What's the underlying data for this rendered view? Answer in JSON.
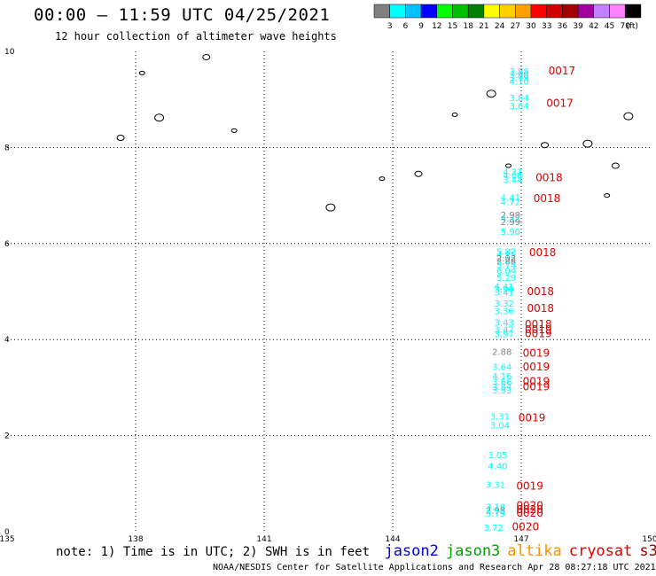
{
  "title": "00:00 – 11:59 UTC 04/25/2021",
  "subtitle": "12 hour collection of altimeter wave heights",
  "scale": {
    "unit": "(ft)",
    "bins": [
      {
        "color": "#808080",
        "label": "3"
      },
      {
        "color": "#00ffff",
        "label": "6"
      },
      {
        "color": "#00bfff",
        "label": "9"
      },
      {
        "color": "#0000ff",
        "label": "12"
      },
      {
        "color": "#00ff00",
        "label": "15"
      },
      {
        "color": "#00c000",
        "label": "18"
      },
      {
        "color": "#008000",
        "label": "21"
      },
      {
        "color": "#ffff00",
        "label": "24"
      },
      {
        "color": "#ffd000",
        "label": "27"
      },
      {
        "color": "#ffa000",
        "label": "30"
      },
      {
        "color": "#ff0000",
        "label": "33"
      },
      {
        "color": "#d00000",
        "label": "36"
      },
      {
        "color": "#a00000",
        "label": "39"
      },
      {
        "color": "#a000a0",
        "label": "42"
      },
      {
        "color": "#c080ff",
        "label": "45"
      },
      {
        "color": "#ff80ff",
        "label": "70"
      },
      {
        "color": "#000000",
        "label": ""
      }
    ]
  },
  "chart_data": {
    "type": "scatter",
    "xlim": [
      135,
      150
    ],
    "ylim": [
      0,
      10
    ],
    "x_ticks": [
      135,
      138,
      141,
      144,
      147,
      150
    ],
    "y_ticks": [
      0,
      2,
      4,
      6,
      8,
      10
    ],
    "grid": true,
    "swh_points": [
      {
        "lon": 146.95,
        "lat": 9.52,
        "swh": "3.88",
        "color": "#00ffff"
      },
      {
        "lon": 146.95,
        "lat": 9.45,
        "swh": "3.90",
        "color": "#00ffff"
      },
      {
        "lon": 146.95,
        "lat": 9.38,
        "swh": "3.99",
        "color": "#00ffff"
      },
      {
        "lon": 146.95,
        "lat": 9.31,
        "swh": "4.10",
        "color": "#00ffff"
      },
      {
        "lon": 146.95,
        "lat": 8.97,
        "swh": "3.84",
        "color": "#00ffff"
      },
      {
        "lon": 146.95,
        "lat": 8.8,
        "swh": "3.64",
        "color": "#00ffff"
      },
      {
        "lon": 146.8,
        "lat": 7.43,
        "swh": "4.31",
        "color": "#00ffff"
      },
      {
        "lon": 146.8,
        "lat": 7.35,
        "swh": "4.08",
        "color": "#00ffff"
      },
      {
        "lon": 146.8,
        "lat": 7.26,
        "swh": "3.44",
        "color": "#00ffff"
      },
      {
        "lon": 146.75,
        "lat": 6.89,
        "swh": "4.41",
        "color": "#00ffff"
      },
      {
        "lon": 146.75,
        "lat": 6.8,
        "swh": "4.72",
        "color": "#00ffff"
      },
      {
        "lon": 146.75,
        "lat": 6.53,
        "swh": "2.98",
        "color": "#808080"
      },
      {
        "lon": 146.75,
        "lat": 6.46,
        "swh": "4.32",
        "color": "#00ffff"
      },
      {
        "lon": 146.75,
        "lat": 6.38,
        "swh": "2.99",
        "color": "#808080"
      },
      {
        "lon": 146.75,
        "lat": 6.18,
        "swh": "5.90",
        "color": "#00ffff"
      },
      {
        "lon": 146.65,
        "lat": 5.77,
        "swh": "5.82",
        "color": "#00ffff"
      },
      {
        "lon": 146.65,
        "lat": 5.7,
        "swh": "4.15",
        "color": "#00ffff"
      },
      {
        "lon": 146.65,
        "lat": 5.63,
        "swh": "2.92",
        "color": "#808080"
      },
      {
        "lon": 146.65,
        "lat": 5.56,
        "swh": "2.88",
        "color": "#808080"
      },
      {
        "lon": 146.65,
        "lat": 5.49,
        "swh": "3.74",
        "color": "#00ffff"
      },
      {
        "lon": 146.65,
        "lat": 5.37,
        "swh": "6.04",
        "color": "#00ffff"
      },
      {
        "lon": 146.65,
        "lat": 5.22,
        "swh": "5.29",
        "color": "#00ffff"
      },
      {
        "lon": 146.6,
        "lat": 5.04,
        "swh": "4.41",
        "color": "#00ffff"
      },
      {
        "lon": 146.6,
        "lat": 4.98,
        "swh": "3.90",
        "color": "#00ffff"
      },
      {
        "lon": 146.6,
        "lat": 4.92,
        "swh": "3.41",
        "color": "#00ffff"
      },
      {
        "lon": 146.6,
        "lat": 4.69,
        "swh": "3.32",
        "color": "#00ffff"
      },
      {
        "lon": 146.6,
        "lat": 4.53,
        "swh": "3.36",
        "color": "#00ffff"
      },
      {
        "lon": 146.6,
        "lat": 4.29,
        "swh": "3.43",
        "color": "#00ffff"
      },
      {
        "lon": 146.6,
        "lat": 4.14,
        "swh": "3.47",
        "color": "#00ffff"
      },
      {
        "lon": 146.6,
        "lat": 4.05,
        "swh": "3.97",
        "color": "#00ffff"
      },
      {
        "lon": 146.55,
        "lat": 3.68,
        "swh": "2.88",
        "color": "#808080"
      },
      {
        "lon": 146.55,
        "lat": 3.37,
        "swh": "3.64",
        "color": "#00ffff"
      },
      {
        "lon": 146.55,
        "lat": 3.17,
        "swh": "4.16",
        "color": "#00ffff"
      },
      {
        "lon": 146.55,
        "lat": 3.05,
        "swh": "3.66",
        "color": "#00ffff"
      },
      {
        "lon": 146.55,
        "lat": 2.95,
        "swh": "3.84",
        "color": "#00ffff"
      },
      {
        "lon": 146.55,
        "lat": 2.88,
        "swh": "3.93",
        "color": "#00ffff"
      },
      {
        "lon": 146.5,
        "lat": 2.33,
        "swh": "3.31",
        "color": "#00ffff"
      },
      {
        "lon": 146.5,
        "lat": 2.15,
        "swh": "3.04",
        "color": "#00ffff"
      },
      {
        "lon": 146.45,
        "lat": 1.53,
        "swh": "3.05",
        "color": "#00ffff"
      },
      {
        "lon": 146.45,
        "lat": 1.3,
        "swh": "4.40",
        "color": "#00ffff"
      },
      {
        "lon": 146.4,
        "lat": 0.91,
        "swh": "3.31",
        "color": "#00ffff"
      },
      {
        "lon": 146.4,
        "lat": 0.45,
        "swh": "3.18",
        "color": "#00ffff"
      },
      {
        "lon": 146.4,
        "lat": 0.38,
        "swh": "2.98",
        "color": "#808080"
      },
      {
        "lon": 146.4,
        "lat": 0.31,
        "swh": "3.79",
        "color": "#00ffff"
      },
      {
        "lon": 146.35,
        "lat": 0.02,
        "swh": "3.72",
        "color": "#00ffff"
      }
    ],
    "time_labels": [
      {
        "lon": 147.95,
        "lat": 9.52,
        "time": "0017"
      },
      {
        "lon": 147.9,
        "lat": 8.85,
        "time": "0017"
      },
      {
        "lon": 147.65,
        "lat": 7.3,
        "time": "0018"
      },
      {
        "lon": 147.6,
        "lat": 6.86,
        "time": "0018"
      },
      {
        "lon": 147.5,
        "lat": 5.74,
        "time": "0018"
      },
      {
        "lon": 147.45,
        "lat": 4.93,
        "time": "0018"
      },
      {
        "lon": 147.45,
        "lat": 4.58,
        "time": "0018"
      },
      {
        "lon": 147.4,
        "lat": 4.24,
        "time": "0018"
      },
      {
        "lon": 147.4,
        "lat": 4.13,
        "time": "0019"
      },
      {
        "lon": 147.4,
        "lat": 4.05,
        "time": "0019"
      },
      {
        "lon": 147.35,
        "lat": 3.64,
        "time": "0019"
      },
      {
        "lon": 147.35,
        "lat": 3.36,
        "time": "0019"
      },
      {
        "lon": 147.35,
        "lat": 3.05,
        "time": "0019"
      },
      {
        "lon": 147.35,
        "lat": 2.94,
        "time": "0019"
      },
      {
        "lon": 147.25,
        "lat": 2.3,
        "time": "0019"
      },
      {
        "lon": 147.2,
        "lat": 0.88,
        "time": "0019"
      },
      {
        "lon": 147.2,
        "lat": 0.47,
        "time": "0020"
      },
      {
        "lon": 147.2,
        "lat": 0.39,
        "time": "0020"
      },
      {
        "lon": 147.2,
        "lat": 0.31,
        "time": "0020"
      },
      {
        "lon": 147.1,
        "lat": 0.03,
        "time": "0020"
      }
    ],
    "time_color": "#e00000",
    "islands": [
      {
        "name": "island-a",
        "lon": 138.15,
        "lat": 9.55
      },
      {
        "name": "island-b",
        "lon": 137.65,
        "lat": 8.2
      },
      {
        "name": "island-c",
        "lon": 138.55,
        "lat": 8.62
      },
      {
        "name": "island-d",
        "lon": 140.3,
        "lat": 8.35
      },
      {
        "name": "island-e",
        "lon": 139.65,
        "lat": 9.88
      },
      {
        "name": "island-f",
        "lon": 146.3,
        "lat": 9.12
      },
      {
        "name": "island-g",
        "lon": 145.45,
        "lat": 8.68
      },
      {
        "name": "island-h",
        "lon": 147.55,
        "lat": 8.05
      },
      {
        "name": "island-i",
        "lon": 148.55,
        "lat": 8.08
      },
      {
        "name": "island-j",
        "lon": 143.75,
        "lat": 7.35
      },
      {
        "name": "island-k",
        "lon": 144.6,
        "lat": 7.45
      },
      {
        "name": "island-l",
        "lon": 142.55,
        "lat": 6.75
      },
      {
        "name": "island-m",
        "lon": 146.7,
        "lat": 7.62
      },
      {
        "name": "island-n",
        "lon": 149.2,
        "lat": 7.62
      },
      {
        "name": "island-o",
        "lon": 149.5,
        "lat": 8.65
      },
      {
        "name": "island-p",
        "lon": 149.0,
        "lat": 7.0
      }
    ]
  },
  "note": {
    "text": "note: 1) Time is in UTC; 2) SWH is in feet",
    "satellites": [
      {
        "name": "jason2",
        "color": "#0000e0"
      },
      {
        "name": "jason3",
        "color": "#00a000"
      },
      {
        "name": "altika",
        "color": "#ff9000"
      },
      {
        "name": "cryosat",
        "color": "#e00000"
      },
      {
        "name": "s3a",
        "color": "#a00000"
      }
    ]
  },
  "credit": "NOAA/NESDIS Center for Satellite Applications and Research    Apr 28 08:27:18 UTC 2021"
}
